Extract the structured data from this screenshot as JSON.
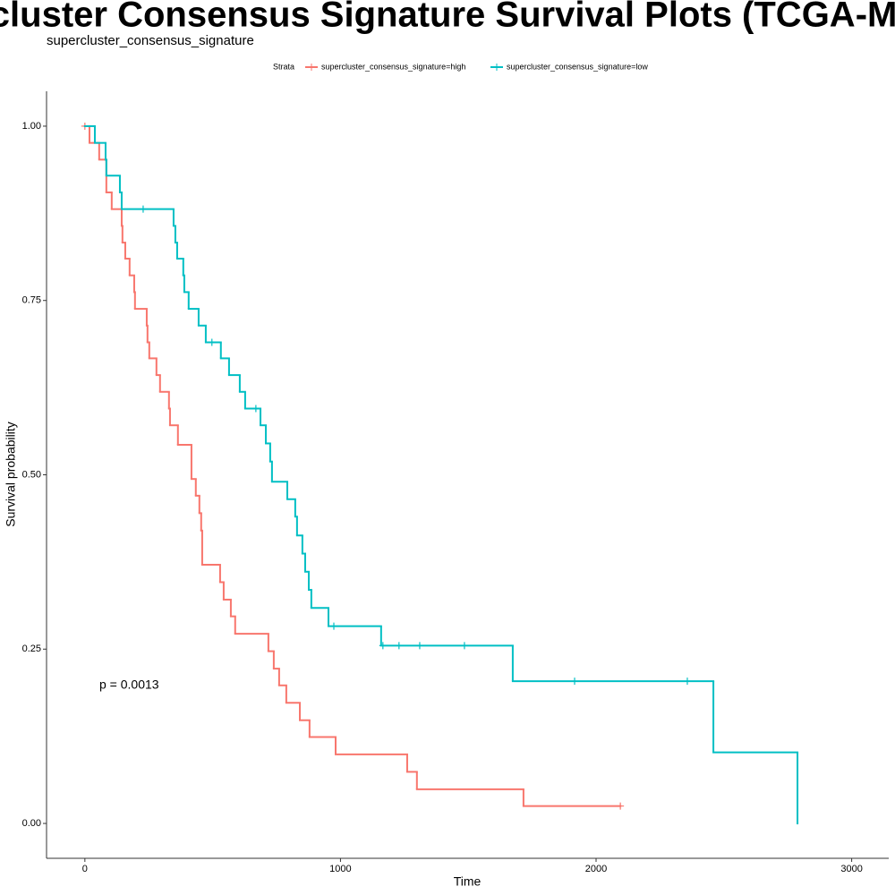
{
  "chart_data": {
    "type": "step",
    "title": "supercluster Consensus Signature Survival Plots (TCGA-MESO)",
    "subtitle": "supercluster_consensus_signature",
    "x_label": "Time",
    "y_label": "Survival probability",
    "legend_title": "Strata",
    "legend_position": "top",
    "annotation": "p = 0.0013",
    "xlim": [
      -150,
      3145
    ],
    "ylim": [
      -0.05,
      1.05
    ],
    "xticks": [
      0,
      1000,
      2000,
      3000
    ],
    "yticks": [
      {
        "value": 0,
        "label": "0.00"
      },
      {
        "value": 0.25,
        "label": "0.25"
      },
      {
        "value": 0.5,
        "label": "0.50"
      },
      {
        "value": 0.75,
        "label": "0.75"
      },
      {
        "value": 1,
        "label": "1.00"
      }
    ],
    "series": [
      {
        "name": "supercluster_consensus_signature=high",
        "color": "#f8766d",
        "x": [
          0,
          18,
          56,
          84,
          105,
          144,
          147,
          158,
          175,
          193,
          196,
          242,
          245,
          252,
          280,
          294,
          329,
          333,
          364,
          417,
          434,
          448,
          455,
          459,
          529,
          543,
          571,
          588,
          718,
          739,
          760,
          788,
          841,
          879,
          981,
          1261,
          1299,
          1716,
          2095
        ],
        "values": [
          1,
          0.976,
          0.952,
          0.905,
          0.881,
          0.857,
          0.833,
          0.81,
          0.786,
          0.762,
          0.738,
          0.714,
          0.69,
          0.667,
          0.643,
          0.619,
          0.595,
          0.571,
          0.543,
          0.494,
          0.47,
          0.445,
          0.42,
          0.371,
          0.346,
          0.321,
          0.297,
          0.272,
          0.247,
          0.222,
          0.198,
          0.173,
          0.148,
          0.124,
          0.099,
          0.074,
          0.049,
          0.025,
          0.025
        ],
        "censor_x": [
          0,
          2095
        ],
        "censor_values": [
          1,
          0.025
        ]
      },
      {
        "name": "supercluster_consensus_signature=low",
        "color": "#00bfc4",
        "x": [
          0,
          39,
          81,
          84,
          137,
          144,
          347,
          354,
          361,
          385,
          389,
          406,
          445,
          473,
          532,
          564,
          606,
          627,
          687,
          708,
          725,
          732,
          792,
          823,
          830,
          851,
          862,
          876,
          886,
          953,
          1159,
          1674,
          2459,
          2788
        ],
        "values": [
          1,
          0.976,
          0.952,
          0.929,
          0.905,
          0.881,
          0.857,
          0.833,
          0.81,
          0.786,
          0.762,
          0.738,
          0.714,
          0.69,
          0.667,
          0.643,
          0.619,
          0.595,
          0.571,
          0.545,
          0.519,
          0.49,
          0.465,
          0.44,
          0.413,
          0.387,
          0.361,
          0.335,
          0.309,
          0.283,
          0.255,
          0.204,
          0.102,
          0
        ],
        "censor_x": [
          228,
          497,
          669,
          974,
          1166,
          1229,
          1310,
          1485,
          1916,
          2357
        ],
        "censor_values": [
          0.881,
          0.69,
          0.595,
          0.283,
          0.255,
          0.255,
          0.255,
          0.255,
          0.204,
          0.204
        ]
      }
    ]
  }
}
